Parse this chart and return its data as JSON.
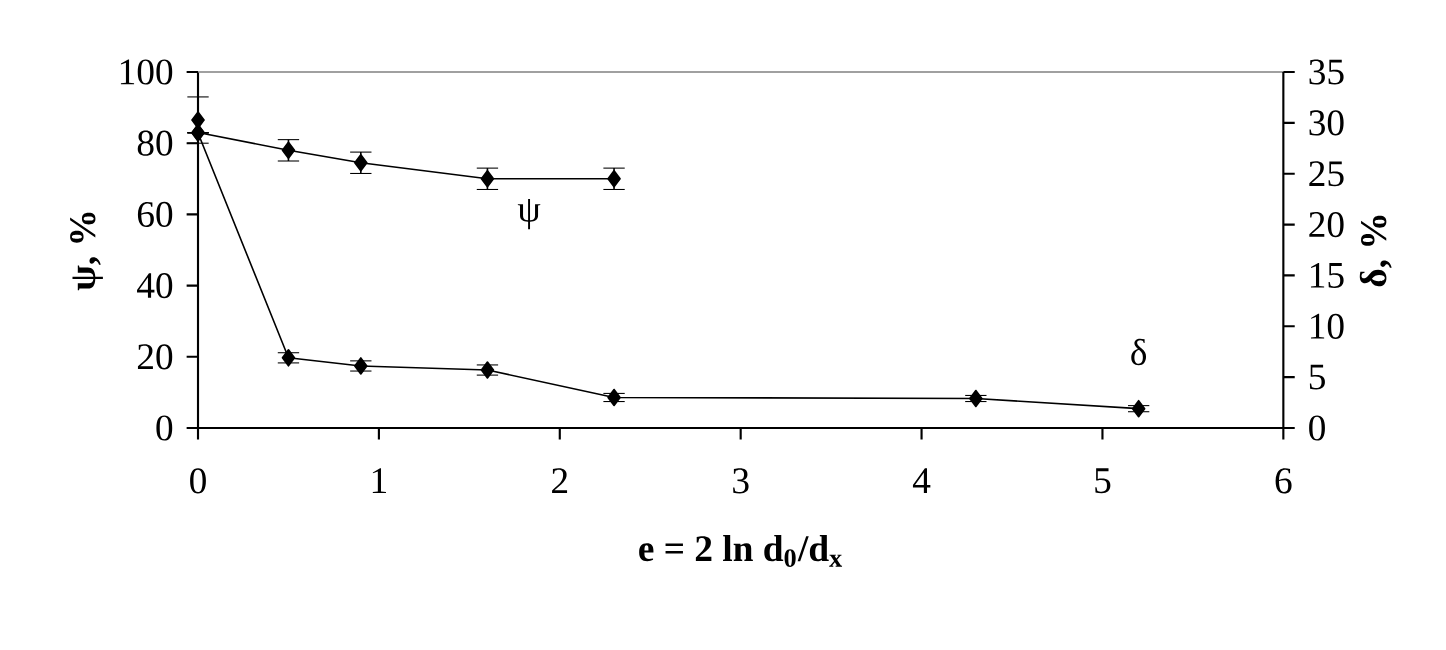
{
  "chart_data": {
    "type": "line",
    "xlabel": "e = 2 ln d$_{0}$/d$_{x}$",
    "ylabel": "ψ, %",
    "y2label": "δ, %",
    "xlim": [
      0,
      6
    ],
    "xticks": [
      0,
      1,
      2,
      3,
      4,
      5,
      6
    ],
    "ylim": [
      0,
      100
    ],
    "yticks": [
      0,
      20,
      40,
      60,
      80,
      100
    ],
    "y2lim": [
      0,
      35
    ],
    "y2ticks": [
      0,
      5,
      10,
      15,
      20,
      25,
      30,
      35
    ],
    "marker": "diamond",
    "grid": false,
    "series": [
      {
        "name": "ψ",
        "color": "#000000",
        "x": [
          0,
          0.5,
          0.9,
          1.6,
          2.3
        ],
        "values": [
          83,
          78,
          74.5,
          70,
          70
        ],
        "errors": [
          null,
          3,
          3,
          3,
          3
        ]
      },
      {
        "type": "scatter",
        "color": "#000000",
        "x": [
          0
        ],
        "values": [
          86.5
        ],
        "errors": [
          6.5
        ]
      },
      {
        "name": "δ",
        "axis": "y2",
        "color": "#000000",
        "x": [
          0,
          0.5,
          0.9,
          1.6,
          2.3,
          4.3,
          5.2
        ],
        "values": [
          29,
          6.9,
          6.1,
          5.7,
          3.0,
          2.9,
          1.9
        ],
        "errors": [
          null,
          0.5,
          0.5,
          0.5,
          0.4,
          0.3,
          0.3
        ]
      }
    ]
  }
}
